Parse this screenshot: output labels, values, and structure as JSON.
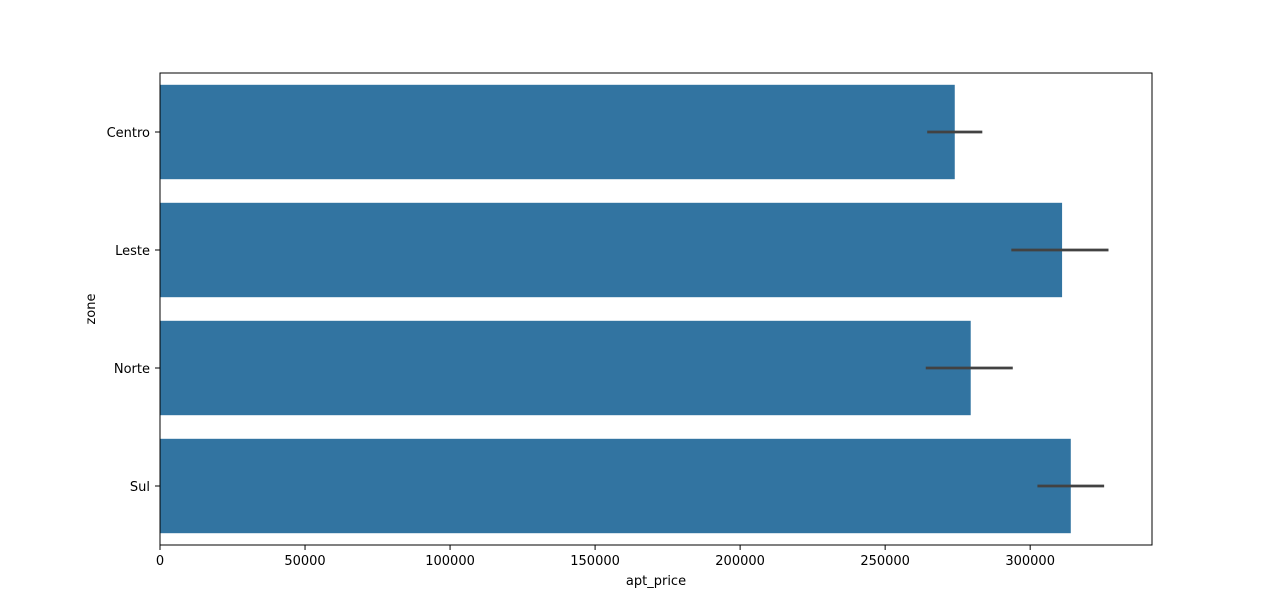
{
  "chart_data": {
    "type": "bar",
    "orientation": "horizontal",
    "categories": [
      "Centro",
      "Leste",
      "Norte",
      "Sul"
    ],
    "values": [
      274000,
      311000,
      279500,
      314000
    ],
    "error_bars": [
      [
        264500,
        283500
      ],
      [
        293500,
        327000
      ],
      [
        264000,
        294000
      ],
      [
        302500,
        325500
      ]
    ],
    "xlabel": "apt_price",
    "ylabel": "zone",
    "xlim": [
      0,
      342000
    ],
    "xticks": [
      0,
      50000,
      100000,
      150000,
      200000,
      250000,
      300000
    ],
    "xtick_labels": [
      "0",
      "50000",
      "100000",
      "150000",
      "200000",
      "250000",
      "300000"
    ],
    "bar_color": "#3274a1",
    "error_color": "#424242",
    "grid": false,
    "legend": "none"
  }
}
